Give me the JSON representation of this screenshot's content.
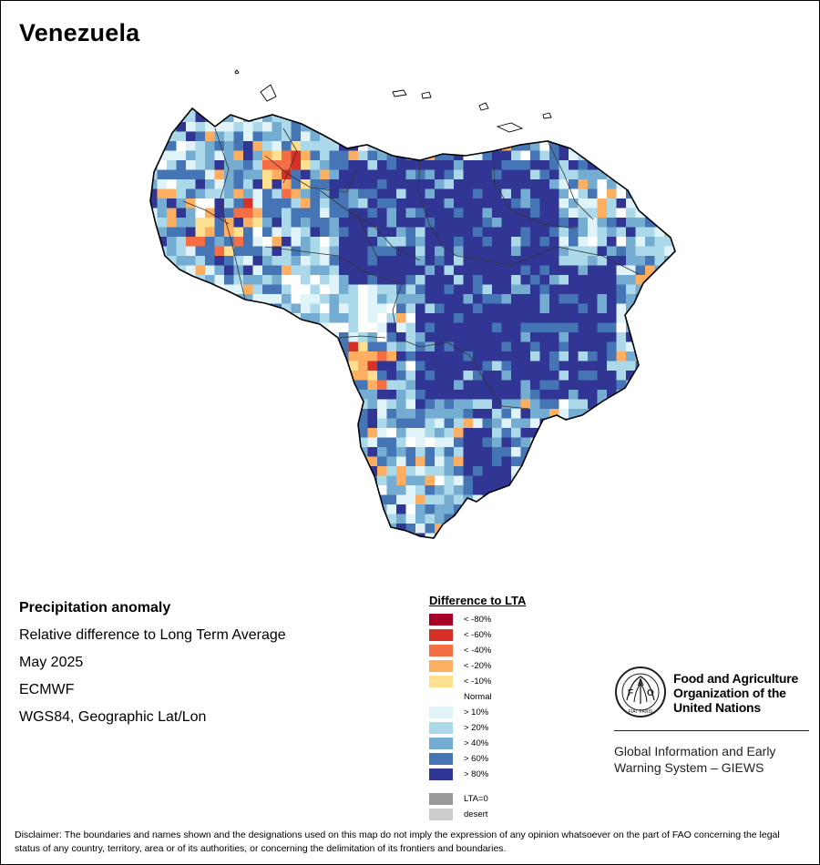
{
  "title": "Venezuela",
  "info": {
    "heading": "Precipitation anomaly",
    "subtitle": "Relative difference to Long Term Average",
    "date": "May 2025",
    "source": "ECMWF",
    "projection": "WGS84, Geographic Lat/Lon"
  },
  "legend": {
    "title": "Difference to LTA",
    "items": [
      {
        "label": "< -80%",
        "color": "#a50026"
      },
      {
        "label": "< -60%",
        "color": "#d73027"
      },
      {
        "label": "< -40%",
        "color": "#f46d43"
      },
      {
        "label": "< -20%",
        "color": "#fdae61"
      },
      {
        "label": "< -10%",
        "color": "#fee090"
      },
      {
        "label": "Normal",
        "color": "#ffffff"
      },
      {
        "label": "> 10%",
        "color": "#e0f3f8"
      },
      {
        "label": "> 20%",
        "color": "#abd9e9"
      },
      {
        "label": "> 40%",
        "color": "#74add1"
      },
      {
        "label": "> 60%",
        "color": "#4575b4"
      },
      {
        "label": "> 80%",
        "color": "#313695"
      }
    ],
    "extras": [
      {
        "label": "LTA=0",
        "color": "#999999"
      },
      {
        "label": "desert",
        "color": "#cccccc"
      }
    ]
  },
  "organization": {
    "name_lines": [
      "Food and Agriculture",
      "Organization of the",
      "United Nations"
    ],
    "logo_letters": [
      "F",
      "A",
      "O"
    ],
    "motto": "FIAT PANIS",
    "system_lines": [
      "Global Information and Early",
      "Warning System – GIEWS"
    ]
  },
  "disclaimer": "Disclaimer: The boundaries and names shown and the designations used on this map do not imply the expression of any opinion whatsoever on the part of FAO concerning the legal status of any country, territory, area or of its authorities, or concerning the delimitation of its frontiers and boundaries."
}
